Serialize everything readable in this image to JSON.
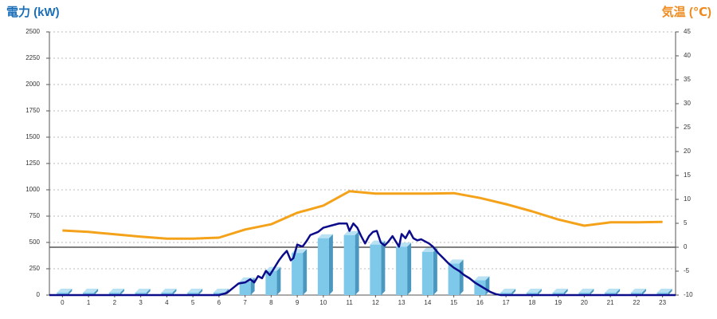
{
  "chart_data": {
    "type": "combo",
    "y_title": "電力 (kW)",
    "y2_title": "気温 (℃)",
    "x": [
      0,
      1,
      2,
      3,
      4,
      5,
      6,
      7,
      8,
      9,
      10,
      11,
      12,
      13,
      14,
      15,
      16,
      17,
      18,
      19,
      20,
      21,
      22,
      23
    ],
    "xlim": [
      -0.5,
      23.5
    ],
    "xticks": [
      0,
      1,
      2,
      3,
      4,
      5,
      6,
      7,
      8,
      9,
      10,
      11,
      12,
      13,
      14,
      15,
      16,
      17,
      18,
      19,
      20,
      21,
      22,
      23
    ],
    "ylim": [
      0,
      2500
    ],
    "yticks": [
      0,
      250,
      500,
      750,
      1000,
      1250,
      1500,
      1750,
      2000,
      2250,
      2500
    ],
    "y2lim": [
      -10,
      45
    ],
    "y2ticks": [
      -10,
      -5,
      0,
      5,
      10,
      15,
      20,
      25,
      30,
      35,
      40,
      45
    ],
    "grid": true,
    "series": [
      {
        "type": "bar",
        "color": "#7ec8ea",
        "values": [
          0,
          0,
          0,
          0,
          0,
          0,
          0,
          130,
          230,
          400,
          540,
          570,
          480,
          460,
          410,
          300,
          140,
          0,
          0,
          0,
          0,
          0,
          0,
          0
        ]
      },
      {
        "type": "line",
        "axis": "y2",
        "color": "#f5a21b",
        "values": [
          3.5,
          3.2,
          2.7,
          2.2,
          1.8,
          1.8,
          2.0,
          3.7,
          4.8,
          7.2,
          8.7,
          11.7,
          11.2,
          11.2,
          11.2,
          11.3,
          10.3,
          9.0,
          7.5,
          5.8,
          4.5,
          5.2,
          5.2,
          5.3
        ]
      },
      {
        "type": "line",
        "color": "#0c0c8a",
        "x": [
          -0.5,
          6,
          6.3,
          6.6,
          6.75,
          7,
          7.2,
          7.35,
          7.5,
          7.65,
          7.8,
          7.95,
          8.1,
          8.3,
          8.45,
          8.6,
          8.75,
          8.85,
          9.0,
          9.2,
          9.35,
          9.5,
          9.8,
          10.0,
          10.3,
          10.6,
          10.9,
          11.0,
          11.15,
          11.3,
          11.45,
          11.6,
          11.75,
          11.9,
          12.05,
          12.2,
          12.35,
          12.5,
          12.65,
          12.8,
          12.9,
          13.0,
          13.15,
          13.3,
          13.45,
          13.6,
          13.75,
          13.9,
          14.05,
          14.2,
          14.4,
          14.6,
          14.8,
          15.0,
          15.2,
          15.4,
          15.6,
          15.8,
          16.0,
          16.2,
          16.4,
          16.6,
          16.8,
          17,
          23.5
        ],
        "values": [
          0,
          0,
          20,
          80,
          110,
          120,
          150,
          120,
          180,
          160,
          230,
          190,
          250,
          330,
          380,
          420,
          330,
          350,
          480,
          460,
          510,
          570,
          600,
          640,
          660,
          680,
          680,
          610,
          680,
          640,
          560,
          490,
          560,
          600,
          610,
          500,
          470,
          510,
          560,
          500,
          460,
          580,
          540,
          610,
          540,
          520,
          530,
          510,
          490,
          460,
          400,
          350,
          300,
          260,
          230,
          190,
          160,
          120,
          90,
          60,
          30,
          10,
          0,
          0,
          0
        ]
      }
    ]
  }
}
